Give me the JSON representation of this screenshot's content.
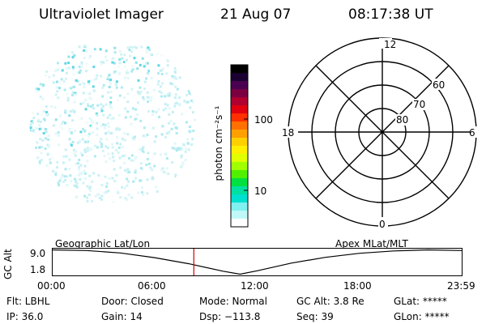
{
  "header": {
    "title": "Ultraviolet Imager",
    "date": "21 Aug 07",
    "time": "08:17:38 UT"
  },
  "colorbar": {
    "unit_label": "photon cm⁻²s⁻¹",
    "ticks": [
      {
        "label": "100",
        "value": 100
      },
      {
        "label": "10",
        "value": 10
      }
    ],
    "colors": [
      "#000000",
      "#1a0030",
      "#4a0050",
      "#7a0040",
      "#b00030",
      "#e00010",
      "#ff3000",
      "#ff7000",
      "#ffa000",
      "#ffd000",
      "#fff000",
      "#e0ff00",
      "#a0ff00",
      "#50f000",
      "#00e040",
      "#00e0a0",
      "#00e0d0",
      "#80f0f0",
      "#c0f8f8",
      "#ffffff"
    ]
  },
  "polar": {
    "mlt_labels": [
      "12",
      "18",
      "6",
      "0"
    ],
    "lat_labels": [
      "60",
      "70",
      "80"
    ]
  },
  "altitude_plot": {
    "ylabel": "GC Alt",
    "ytick_top": "9.0",
    "ytick_bottom": "1.8",
    "left_label": "Geographic Lat/Lon",
    "right_label": "Apex MLat/MLT",
    "xticks": [
      "00:00",
      "06:00",
      "12:00",
      "18:00",
      "23:59"
    ],
    "marker_color": "#d00000",
    "marker_time_hours": 8.29
  },
  "chart_data": {
    "type": "line",
    "xlabel": "",
    "ylabel": "GC Alt",
    "ylim": [
      1.8,
      9.0
    ],
    "x": [
      0,
      2,
      4,
      6,
      8,
      10,
      11,
      12,
      14,
      16,
      18,
      20,
      22,
      23.98
    ],
    "y": [
      9.0,
      8.8,
      8.1,
      6.7,
      4.9,
      2.7,
      1.8,
      2.8,
      5.1,
      6.8,
      8.0,
      8.7,
      9.0,
      8.8
    ]
  },
  "info": {
    "filter": "Flt: LBHL",
    "ip": "IP: 36.0",
    "door": "Door: Closed",
    "gain": "Gain: 14",
    "mode": "Mode: Normal",
    "dsp": "Dsp: −113.8",
    "gcalt": "GC Alt: 3.8 Re",
    "seq": "Seq: 39",
    "glat": "GLat: *****",
    "glon": "GLon: *****"
  }
}
